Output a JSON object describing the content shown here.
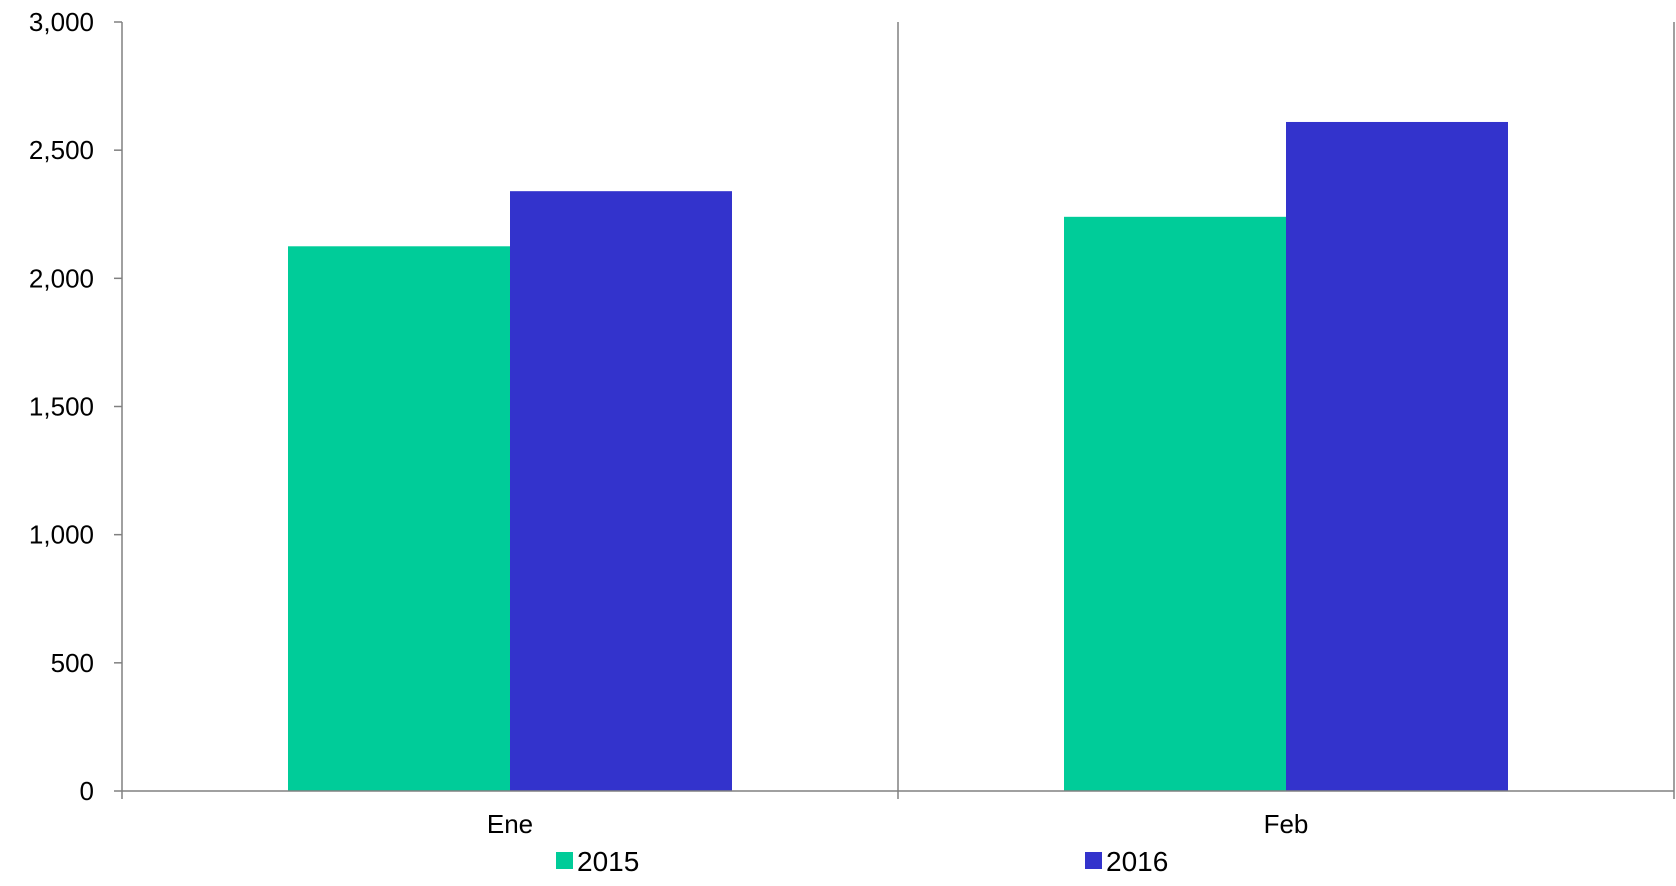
{
  "chart_data": {
    "type": "bar",
    "title": "",
    "xlabel": "",
    "ylabel": "",
    "categories": [
      "Ene",
      "Feb"
    ],
    "series": [
      {
        "name": "2015",
        "values": [
          2125,
          2240
        ],
        "color": "#00cc99"
      },
      {
        "name": "2016",
        "values": [
          2340,
          2610
        ],
        "color": "#3333cc"
      }
    ],
    "ylim": [
      0,
      3000
    ],
    "yticks": [
      0,
      500,
      1000,
      1500,
      2000,
      2500,
      3000
    ],
    "ytick_labels": [
      "0",
      "500",
      "1,000",
      "1,500",
      "2,000",
      "2,500",
      "3,000"
    ],
    "grid": false,
    "legend_position": "bottom",
    "axis_color": "#808080"
  }
}
